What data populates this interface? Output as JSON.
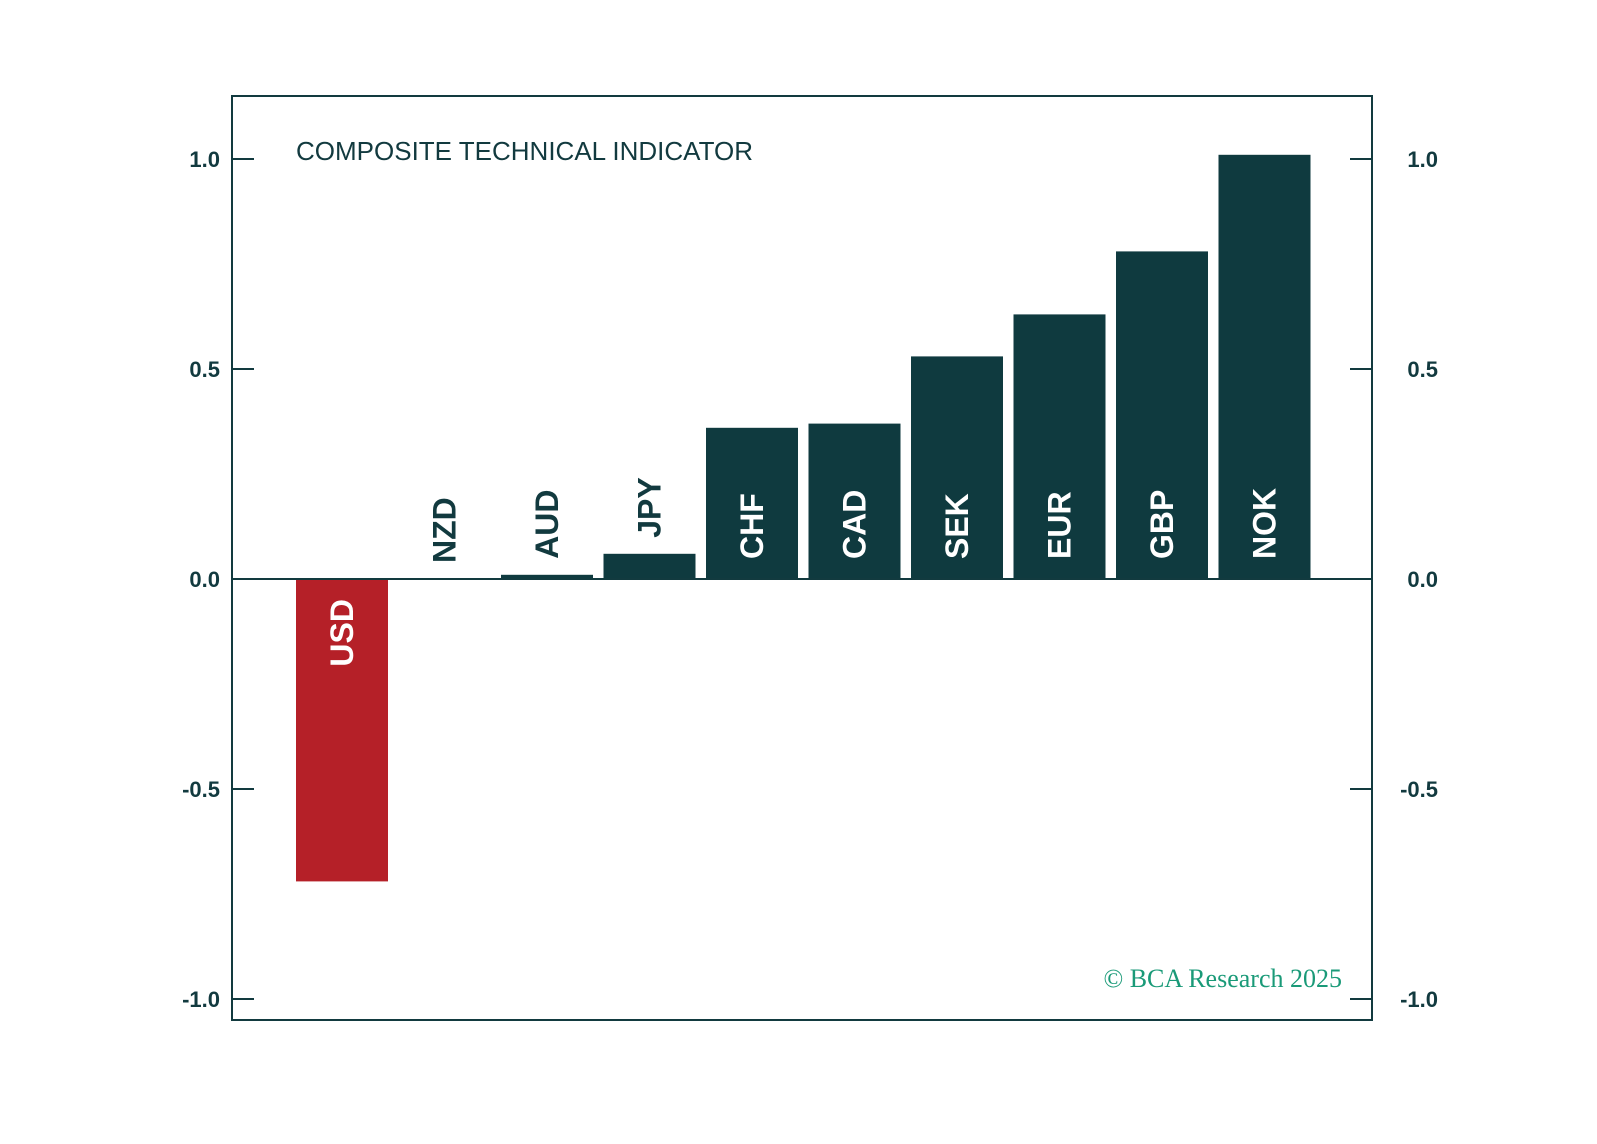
{
  "chart_data": {
    "type": "bar",
    "title": "COMPOSITE TECHNICAL INDICATOR",
    "categories": [
      "USD",
      "NZD",
      "AUD",
      "JPY",
      "CHF",
      "CAD",
      "SEK",
      "EUR",
      "GBP",
      "NOK"
    ],
    "values": [
      -0.72,
      0.0,
      0.01,
      0.06,
      0.36,
      0.37,
      0.53,
      0.63,
      0.78,
      1.01
    ],
    "ylim": [
      -1.05,
      1.15
    ],
    "yticks": [
      1.0,
      0.5,
      0.0,
      -0.5,
      -1.0
    ],
    "ytick_labels": [
      "1.0",
      "0.5",
      "0.0",
      "-0.5",
      "-1.0"
    ],
    "xlabel": "",
    "ylabel": "",
    "credit": "© BCA Research 2025",
    "colors": {
      "positive": "#0f3a3f",
      "negative": "#b52028",
      "axis": "#123a3f",
      "text": "#123a3f",
      "credit": "#1a9a78"
    }
  }
}
